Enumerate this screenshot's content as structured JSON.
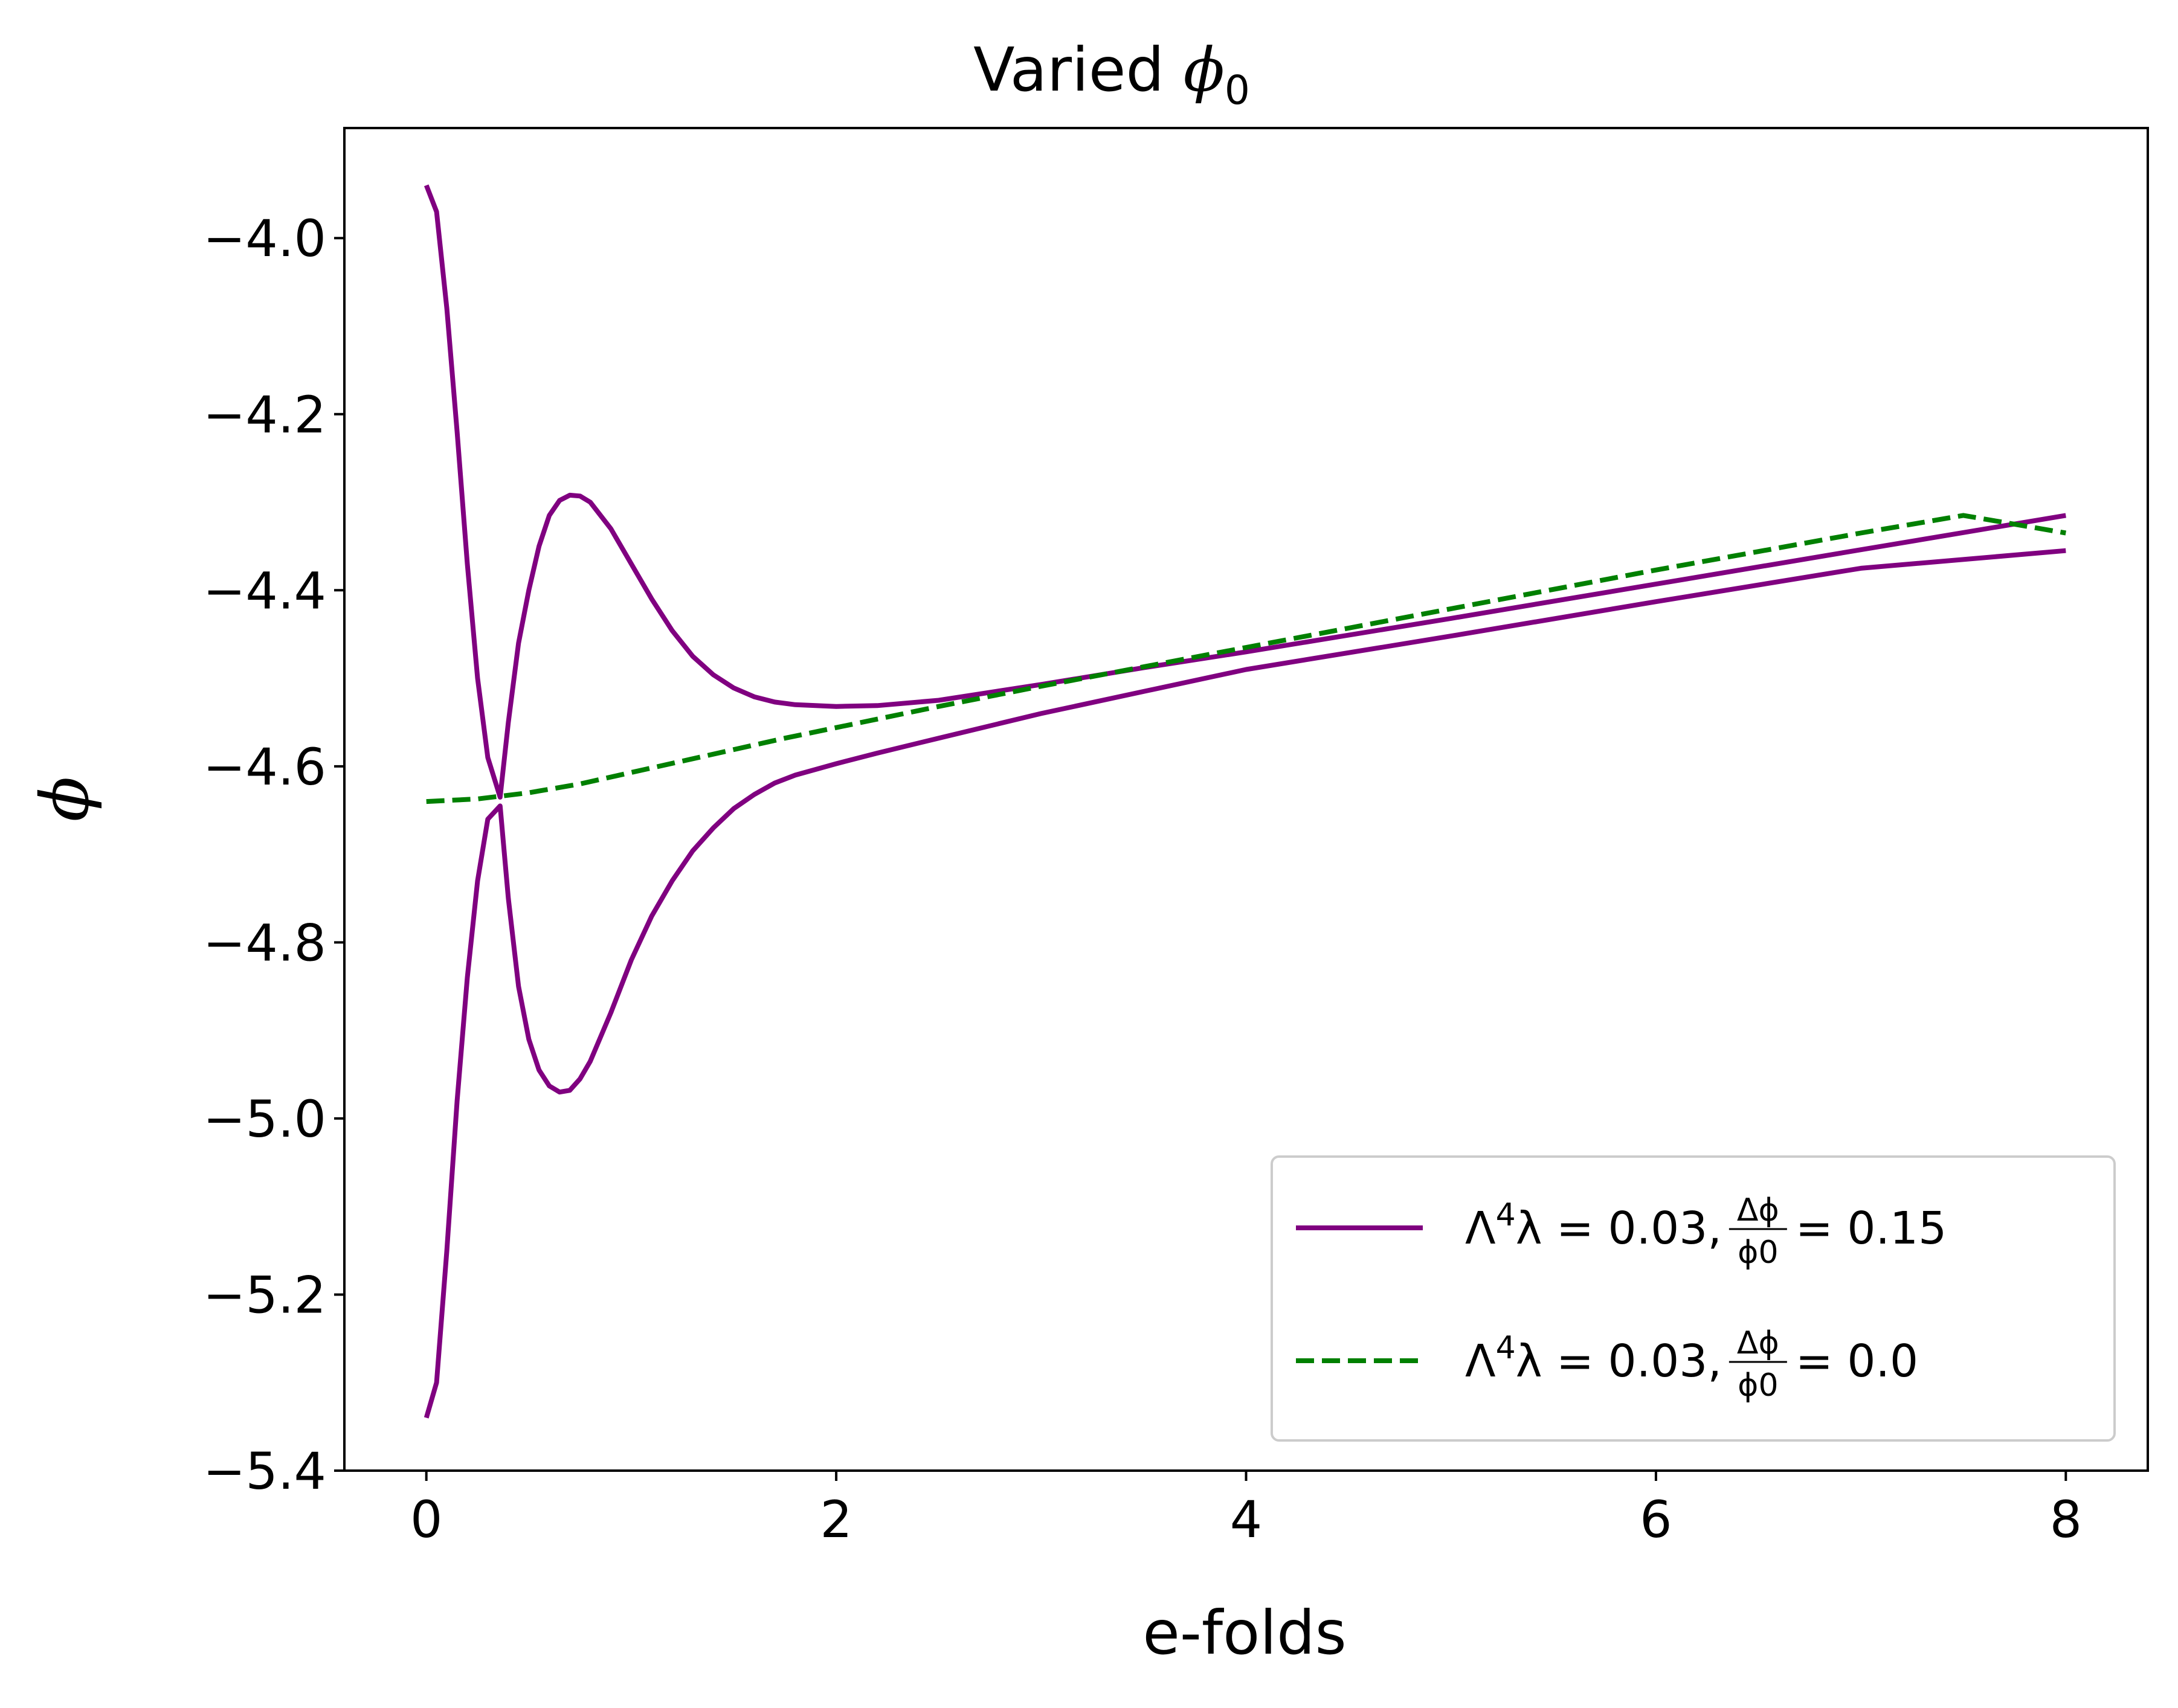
{
  "chart_data": {
    "type": "line",
    "title": "Varied ϕ0",
    "title_parts": {
      "main": "Varied ",
      "symbol": "ϕ",
      "subscript": "0"
    },
    "xlabel": "e-folds",
    "ylabel": "ϕ",
    "xlim": [
      -0.4,
      8.4
    ],
    "ylim": [
      -5.4,
      -3.875
    ],
    "xticks": [
      0,
      2,
      4,
      6,
      8
    ],
    "xtick_labels": [
      "0",
      "2",
      "4",
      "6",
      "8"
    ],
    "yticks": [
      -5.4,
      -5.2,
      -5.0,
      -4.8,
      -4.6,
      -4.4,
      -4.2,
      -4.0
    ],
    "ytick_labels": [
      "−5.4",
      "−5.2",
      "−5.0",
      "−4.8",
      "−4.6",
      "−4.4",
      "−4.2",
      "−4.0"
    ],
    "grid": false,
    "legend_position": "lower-right",
    "series": [
      {
        "name": "Λ4λ = 0.03, Δϕ/ϕ0 = 0.15",
        "legend": {
          "prefix": "Λ",
          "sup": "4",
          "mid": "λ = 0.03, ",
          "frac_num": "Δϕ",
          "frac_den": "ϕ0",
          "suffix": "= 0.15"
        },
        "color": "#800080",
        "dash": "solid",
        "curves": [
          {
            "x": [
              0,
              0.05,
              0.1,
              0.15,
              0.2,
              0.25,
              0.3,
              0.36,
              0.4,
              0.45,
              0.5,
              0.55,
              0.6,
              0.65,
              0.7,
              0.75,
              0.8,
              0.9,
              1.0,
              1.1,
              1.2,
              1.3,
              1.4,
              1.5,
              1.6,
              1.7,
              1.8,
              2.0,
              2.2,
              2.5,
              3.0,
              3.5,
              4.0,
              5.0,
              6.0,
              7.0,
              8.0
            ],
            "y": [
              -3.94,
              -3.97,
              -4.08,
              -4.22,
              -4.37,
              -4.5,
              -4.59,
              -4.635,
              -4.55,
              -4.46,
              -4.4,
              -4.35,
              -4.315,
              -4.298,
              -4.292,
              -4.293,
              -4.3,
              -4.33,
              -4.37,
              -4.41,
              -4.446,
              -4.475,
              -4.496,
              -4.511,
              -4.521,
              -4.527,
              -4.53,
              -4.532,
              -4.531,
              -4.525,
              -4.507,
              -4.488,
              -4.47,
              -4.432,
              -4.393,
              -4.354,
              -4.315
            ]
          },
          {
            "x": [
              0,
              0.05,
              0.1,
              0.15,
              0.2,
              0.25,
              0.3,
              0.36,
              0.4,
              0.45,
              0.5,
              0.55,
              0.6,
              0.65,
              0.7,
              0.75,
              0.8,
              0.9,
              1.0,
              1.1,
              1.2,
              1.3,
              1.4,
              1.5,
              1.6,
              1.7,
              1.8,
              2.0,
              2.2,
              2.5,
              3.0,
              3.5,
              4.0,
              5.0,
              6.0,
              7.0,
              8.0
            ],
            "y": [
              -5.34,
              -5.3,
              -5.15,
              -4.98,
              -4.84,
              -4.73,
              -4.66,
              -4.645,
              -4.75,
              -4.85,
              -4.91,
              -4.945,
              -4.963,
              -4.97,
              -4.968,
              -4.955,
              -4.935,
              -4.88,
              -4.82,
              -4.77,
              -4.73,
              -4.696,
              -4.67,
              -4.648,
              -4.632,
              -4.619,
              -4.61,
              -4.597,
              -4.585,
              -4.568,
              -4.54,
              -4.515,
              -4.49,
              -4.452,
              -4.413,
              -4.375,
              -4.355
            ]
          }
        ]
      },
      {
        "name": "Λ4λ = 0.03, Δϕ/ϕ0 = 0.0",
        "legend": {
          "prefix": "Λ",
          "sup": "4",
          "mid": "λ = 0.03, ",
          "frac_num": "Δϕ",
          "frac_den": "ϕ0",
          "suffix": "= 0.0"
        },
        "color": "#008000",
        "dash": "dashed",
        "curves": [
          {
            "x": [
              0,
              0.25,
              0.5,
              0.75,
              1.0,
              1.25,
              1.5,
              1.75,
              2.0,
              2.5,
              3.0,
              3.5,
              4.0,
              4.5,
              5.0,
              5.5,
              6.0,
              6.5,
              7.0,
              7.5,
              8.0
            ],
            "y": [
              -4.64,
              -4.637,
              -4.63,
              -4.62,
              -4.607,
              -4.594,
              -4.581,
              -4.568,
              -4.556,
              -4.532,
              -4.509,
              -4.487,
              -4.465,
              -4.443,
              -4.421,
              -4.399,
              -4.377,
              -4.356,
              -4.335,
              -4.315,
              -4.335
            ]
          }
        ]
      }
    ]
  }
}
